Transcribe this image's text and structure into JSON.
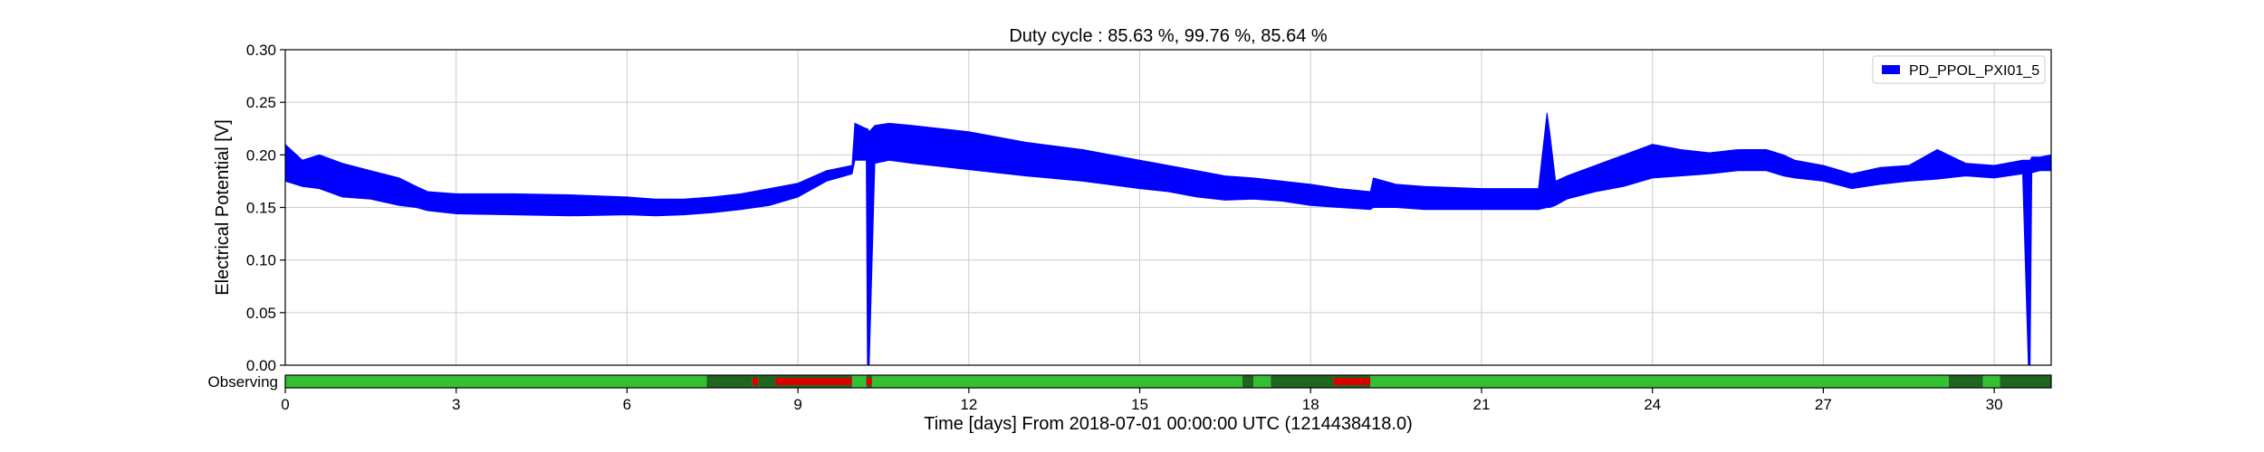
{
  "chart_data": {
    "type": "area",
    "title": "Duty cycle : 85.63 %, 99.76 %, 85.64 %",
    "xlabel": "Time [days] From 2018-07-01 00:00:00 UTC (1214438418.0)",
    "ylabel": "Electrical Potential [V]",
    "xlim": [
      0,
      31
    ],
    "ylim": [
      0,
      0.3
    ],
    "x_ticks": [
      0,
      3,
      6,
      9,
      12,
      15,
      18,
      21,
      24,
      27,
      30
    ],
    "y_ticks": [
      "0.00",
      "0.05",
      "0.10",
      "0.15",
      "0.20",
      "0.25",
      "0.30"
    ],
    "grid": true,
    "legend_position": "top-right",
    "colors": {
      "series": "#0000ff",
      "observing": "#33c133",
      "locked_not_observing": "#1f641f",
      "not_locked": "#dd0000"
    },
    "series": [
      {
        "name": "PD_PPOL_PXI01_5",
        "x": [
          0,
          0.3,
          0.6,
          1,
          1.5,
          2,
          2.3,
          2.5,
          3,
          4,
          5,
          6,
          6.5,
          7,
          7.5,
          8,
          8.5,
          9,
          9.5,
          9.95,
          10.0,
          10.2,
          10.22,
          10.25,
          10.35,
          10.6,
          11,
          12,
          13,
          14,
          15,
          15.5,
          16,
          16.5,
          17,
          17.5,
          18,
          18.5,
          19.05,
          19.1,
          19.5,
          20,
          21,
          22.0,
          22.15,
          22.2,
          22.3,
          22.5,
          23,
          23.5,
          24,
          24.5,
          25,
          25.5,
          26,
          26.3,
          26.5,
          27,
          27.5,
          28,
          28.5,
          29,
          29.5,
          30,
          30.5,
          30.6,
          30.63,
          30.66,
          30.8,
          31
        ],
        "low": [
          0.175,
          0.17,
          0.168,
          0.16,
          0.158,
          0.152,
          0.15,
          0.147,
          0.144,
          0.143,
          0.142,
          0.143,
          0.142,
          0.143,
          0.145,
          0.148,
          0.152,
          0.16,
          0.175,
          0.182,
          0.195,
          0.195,
          0.0,
          0.0,
          0.192,
          0.195,
          0.192,
          0.186,
          0.18,
          0.175,
          0.168,
          0.165,
          0.16,
          0.157,
          0.158,
          0.156,
          0.152,
          0.15,
          0.148,
          0.15,
          0.15,
          0.148,
          0.148,
          0.148,
          0.15,
          0.15,
          0.152,
          0.158,
          0.165,
          0.17,
          0.178,
          0.18,
          0.182,
          0.185,
          0.185,
          0.18,
          0.178,
          0.175,
          0.168,
          0.172,
          0.175,
          0.177,
          0.18,
          0.178,
          0.182,
          0.0,
          0.0,
          0.183,
          0.185,
          0.185
        ],
        "high": [
          0.21,
          0.195,
          0.2,
          0.192,
          0.185,
          0.178,
          0.17,
          0.165,
          0.163,
          0.163,
          0.162,
          0.16,
          0.158,
          0.158,
          0.16,
          0.163,
          0.168,
          0.173,
          0.185,
          0.19,
          0.23,
          0.225,
          0.225,
          0.222,
          0.228,
          0.23,
          0.228,
          0.222,
          0.212,
          0.205,
          0.195,
          0.19,
          0.185,
          0.18,
          0.178,
          0.175,
          0.172,
          0.168,
          0.165,
          0.178,
          0.172,
          0.17,
          0.168,
          0.168,
          0.24,
          0.22,
          0.175,
          0.18,
          0.19,
          0.2,
          0.21,
          0.205,
          0.202,
          0.205,
          0.205,
          0.2,
          0.195,
          0.19,
          0.182,
          0.188,
          0.19,
          0.205,
          0.192,
          0.19,
          0.195,
          0.195,
          0.195,
          0.198,
          0.198,
          0.2
        ]
      }
    ],
    "state_bar": {
      "label": "Observing",
      "segments": [
        {
          "start": 0,
          "end": 7.4,
          "state": "observing"
        },
        {
          "start": 7.4,
          "end": 8.2,
          "state": "locked_not_observing"
        },
        {
          "start": 8.2,
          "end": 8.3,
          "state": "not_locked"
        },
        {
          "start": 8.3,
          "end": 8.6,
          "state": "locked_not_observing"
        },
        {
          "start": 8.6,
          "end": 9.95,
          "state": "not_locked"
        },
        {
          "start": 9.95,
          "end": 10.2,
          "state": "observing"
        },
        {
          "start": 10.2,
          "end": 10.3,
          "state": "not_locked"
        },
        {
          "start": 10.3,
          "end": 16.8,
          "state": "observing"
        },
        {
          "start": 16.8,
          "end": 17.0,
          "state": "locked_not_observing"
        },
        {
          "start": 17.0,
          "end": 17.3,
          "state": "observing"
        },
        {
          "start": 17.3,
          "end": 18.4,
          "state": "locked_not_observing"
        },
        {
          "start": 18.4,
          "end": 19.05,
          "state": "not_locked"
        },
        {
          "start": 19.05,
          "end": 29.2,
          "state": "observing"
        },
        {
          "start": 29.2,
          "end": 29.8,
          "state": "locked_not_observing"
        },
        {
          "start": 29.8,
          "end": 30.1,
          "state": "observing"
        },
        {
          "start": 30.1,
          "end": 31,
          "state": "locked_not_observing"
        }
      ]
    }
  }
}
